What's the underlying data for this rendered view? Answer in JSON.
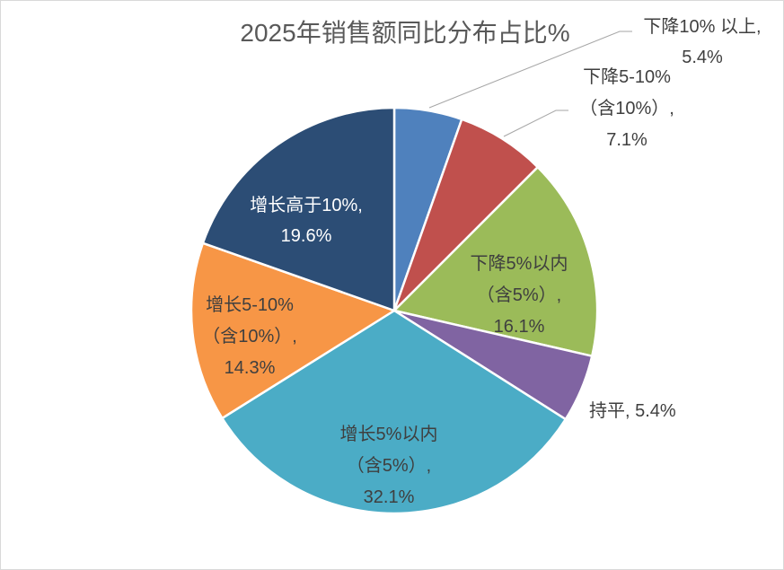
{
  "chart": {
    "title": "2025年销售额同比分布占比%"
  },
  "chart_data": {
    "type": "pie",
    "title": "2025年销售额同比分布占比%",
    "unit": "%",
    "start_angle_deg": 0,
    "direction": "clockwise",
    "total": 100.0,
    "slices": [
      {
        "label": "下降10% 以上",
        "value": 5.4,
        "color": "#4F81BD",
        "label_placement": "outside-leader"
      },
      {
        "label": "下降5-10%（含10%）",
        "value": 7.1,
        "color": "#C0504D",
        "label_placement": "outside-leader"
      },
      {
        "label": "下降5%以内（含5%）",
        "value": 16.1,
        "color": "#9BBB59",
        "label_placement": "inside"
      },
      {
        "label": "持平",
        "value": 5.4,
        "color": "#8064A2",
        "label_placement": "outside"
      },
      {
        "label": "增长5%以内（含5%）",
        "value": 32.1,
        "color": "#4BACC6",
        "label_placement": "inside"
      },
      {
        "label": "增长5-10%（含10%）",
        "value": 14.3,
        "color": "#F79646",
        "label_placement": "inside"
      },
      {
        "label": "增长高于10%",
        "value": 19.6,
        "color": "#2C4D75",
        "label_placement": "inside"
      }
    ],
    "legend": "none",
    "data_labels_format": "label, value%"
  },
  "labels": {
    "decline_over10": {
      "line1": "下降10% 以上,",
      "line2": "5.4%"
    },
    "decline_5_10": {
      "line1": "下降5-10%",
      "line2": "（含10%）,",
      "line3": "7.1%"
    },
    "decline_within5": {
      "line1": "下降5%以内",
      "line2": "（含5%）,",
      "line3": "16.1%"
    },
    "flat": {
      "line1": "持平, 5.4%"
    },
    "growth_within5": {
      "line1": "增长5%以内",
      "line2": "（含5%）,",
      "line3": "32.1%"
    },
    "growth_5_10": {
      "line1": "增长5-10%",
      "line2": "（含10%）,",
      "line3": "14.3%"
    },
    "growth_over10": {
      "line1": "增长高于10%,",
      "line2": "19.6%"
    }
  },
  "colors": {
    "title_text": "#595959",
    "label_text": "#3F3F3F",
    "label_text_on_dark": "#FFFFFF",
    "leader_line": "#A6A6A6",
    "slice_border": "#FFFFFF",
    "frame_border": "#D9D9D9",
    "background": "#FFFFFF"
  }
}
